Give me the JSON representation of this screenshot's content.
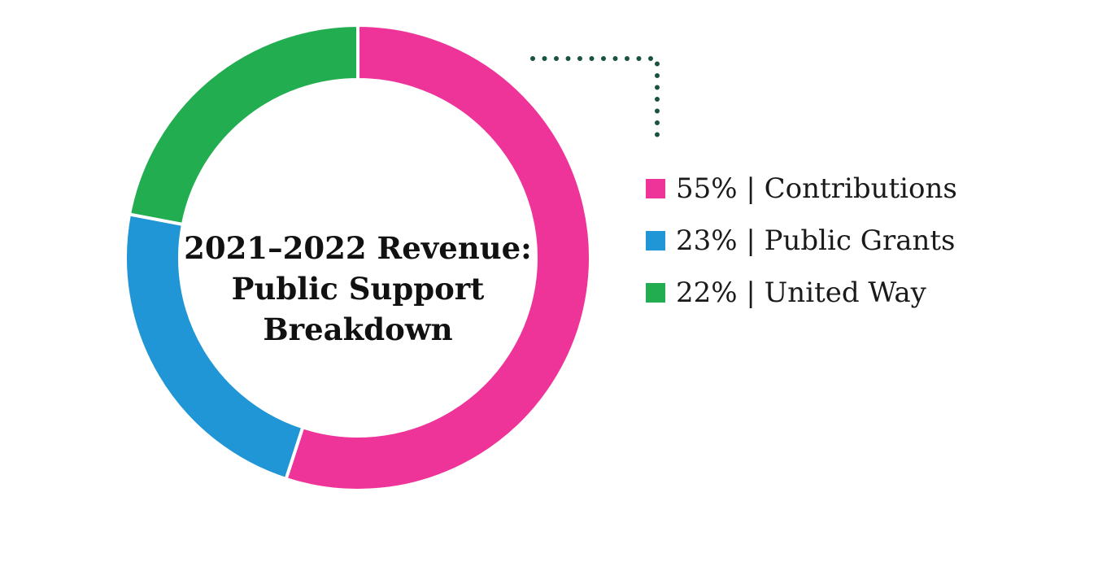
{
  "chart_data": {
    "type": "pie",
    "title_lines": [
      "2021–2022 Revenue:",
      "Public Support",
      "Breakdown"
    ],
    "categories": [
      "Contributions",
      "Public Grants",
      "United Way"
    ],
    "values": [
      55,
      23,
      22
    ],
    "colors": [
      "#ee3399",
      "#2196d6",
      "#22ad50"
    ],
    "legend_labels": [
      "55% | Contributions",
      "23% | Public Grants",
      "22% | United Way"
    ],
    "legend_position": "right",
    "style": "donut",
    "connector_color": "#1a5240"
  }
}
